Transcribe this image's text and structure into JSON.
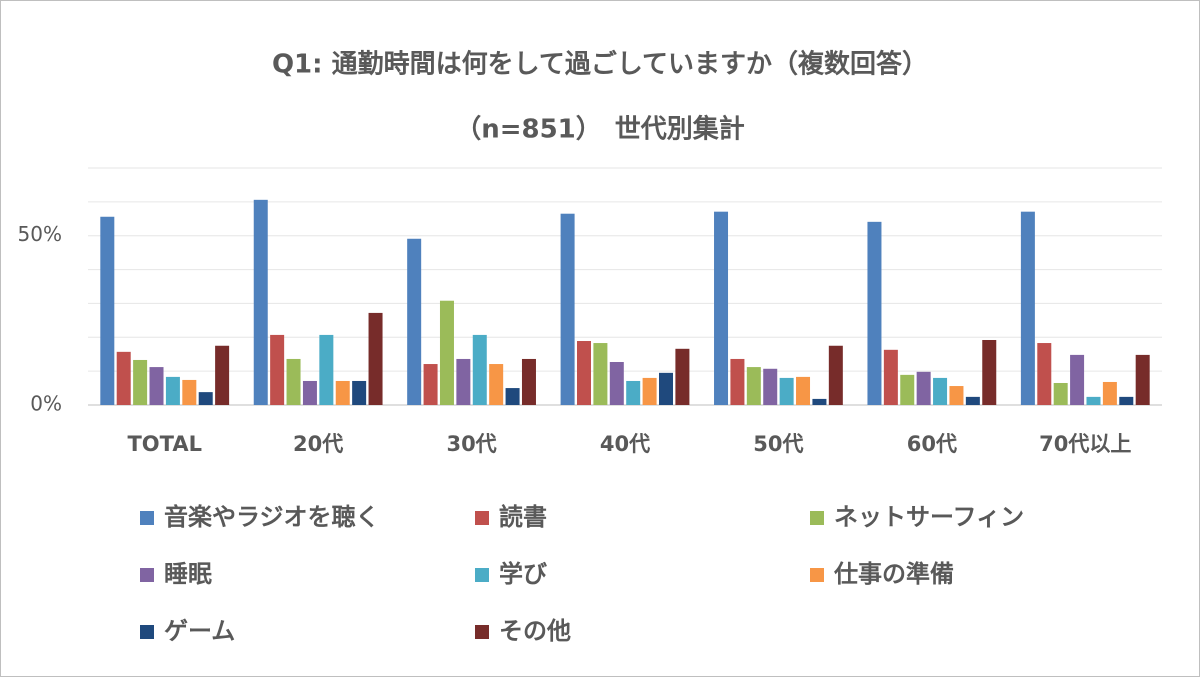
{
  "chart_data": {
    "type": "bar",
    "title": "Q1: 通勤時間は何をして過ごしていますか（複数回答）",
    "subtitle": "（n=851）　世代別集計",
    "categories": [
      "TOTAL",
      "20代",
      "30代",
      "40代",
      "50代",
      "60代",
      "70代以上"
    ],
    "series": [
      {
        "name": "音楽やラジオを聴く",
        "color": "#4f81bd",
        "values": [
          55.6,
          60.6,
          49.1,
          56.5,
          57.1,
          54.1,
          57.1
        ]
      },
      {
        "name": "読書",
        "color": "#c0504d",
        "values": [
          15.7,
          20.7,
          12.1,
          18.9,
          13.6,
          16.3,
          18.3
        ]
      },
      {
        "name": "ネットサーフィン",
        "color": "#9bbb59",
        "values": [
          13.3,
          13.6,
          30.8,
          18.3,
          11.2,
          8.9,
          6.5
        ]
      },
      {
        "name": "睡眠",
        "color": "#8064a2",
        "values": [
          11.2,
          7.1,
          13.6,
          12.7,
          10.7,
          9.8,
          14.8
        ]
      },
      {
        "name": "学び",
        "color": "#4bacc6",
        "values": [
          8.3,
          20.7,
          20.7,
          7.1,
          8.0,
          8.0,
          2.4
        ]
      },
      {
        "name": "仕事の準備",
        "color": "#f79646",
        "values": [
          7.4,
          7.1,
          12.1,
          8.0,
          8.3,
          5.6,
          6.8
        ]
      },
      {
        "name": "ゲーム",
        "color": "#1f497d",
        "values": [
          3.8,
          7.1,
          5.0,
          9.5,
          1.8,
          2.4,
          2.4
        ]
      },
      {
        "name": "その他",
        "color": "#772c2a",
        "values": [
          17.5,
          27.2,
          13.6,
          16.6,
          17.5,
          19.2,
          14.8
        ]
      }
    ],
    "ylim": [
      0,
      70
    ],
    "yticks": [
      {
        "value": 0,
        "label": "0%"
      },
      {
        "value": 50,
        "label": "50%"
      }
    ],
    "minor_yticks": [
      10,
      20,
      30,
      40,
      60,
      70
    ],
    "grid": true
  }
}
